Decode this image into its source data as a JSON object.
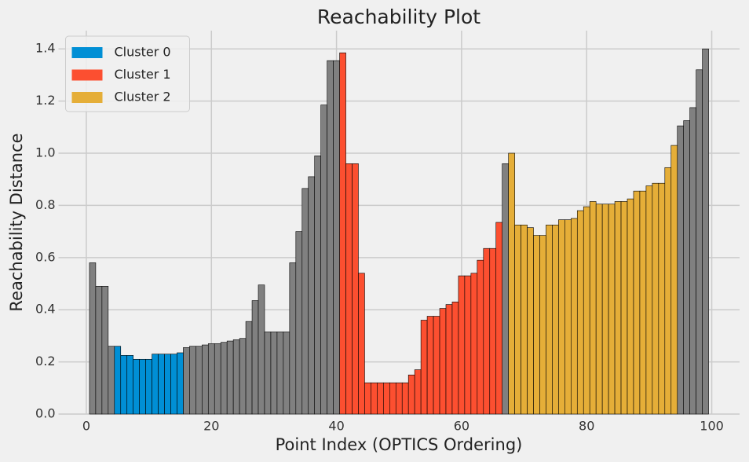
{
  "chart_data": {
    "type": "bar",
    "title": "Reachability Plot",
    "x_label": "Point Index (OPTICS Ordering)",
    "y_label": "Reachability Distance",
    "xlim": [
      -4.45,
      104.45
    ],
    "ylim": [
      0,
      1.47
    ],
    "xticks": [
      0,
      20,
      40,
      60,
      80,
      100
    ],
    "yticks": [
      {
        "value": 0,
        "label": "0.0"
      },
      {
        "value": 0.2,
        "label": "0.2"
      },
      {
        "value": 0.4,
        "label": "0.4"
      },
      {
        "value": 0.6,
        "label": "0.6"
      },
      {
        "value": 0.8,
        "label": "0.8"
      },
      {
        "value": 1,
        "label": "1.0"
      },
      {
        "value": 1.2,
        "label": "1.2"
      },
      {
        "value": 1.4,
        "label": "1.4"
      }
    ],
    "grid": true,
    "legend": "upper left",
    "series": [
      {
        "color": "#808080",
        "x": [
          1,
          2,
          3,
          4,
          16,
          17,
          18,
          19,
          20,
          21,
          22,
          23,
          24,
          25,
          26,
          27,
          28,
          29,
          30,
          31,
          32,
          33,
          34,
          35,
          36,
          37,
          38,
          39,
          40,
          67,
          95,
          96,
          97,
          98,
          99
        ],
        "values": [
          0.58,
          0.49,
          0.49,
          0.26,
          0.255,
          0.26,
          0.26,
          0.265,
          0.27,
          0.27,
          0.275,
          0.28,
          0.285,
          0.29,
          0.355,
          0.435,
          0.495,
          0.315,
          0.315,
          0.315,
          0.315,
          0.58,
          0.7,
          0.865,
          0.91,
          0.99,
          1.185,
          1.355,
          1.355,
          0.96,
          1.105,
          1.125,
          1.175,
          1.32,
          1.4
        ]
      },
      {
        "name": "Cluster 0",
        "color": "#008fd5",
        "x": [
          5,
          6,
          7,
          8,
          9,
          10,
          11,
          12,
          13,
          14,
          15
        ],
        "values": [
          0.26,
          0.225,
          0.225,
          0.21,
          0.21,
          0.21,
          0.23,
          0.23,
          0.23,
          0.23,
          0.235
        ]
      },
      {
        "name": "Cluster 1",
        "color": "#fc4f30",
        "x": [
          41,
          42,
          43,
          44,
          45,
          46,
          47,
          48,
          49,
          50,
          51,
          52,
          53,
          54,
          55,
          56,
          57,
          58,
          59,
          60,
          61,
          62,
          63,
          64,
          65,
          66
        ],
        "values": [
          1.385,
          0.96,
          0.96,
          0.54,
          0.12,
          0.12,
          0.12,
          0.12,
          0.12,
          0.12,
          0.12,
          0.15,
          0.17,
          0.36,
          0.375,
          0.375,
          0.405,
          0.42,
          0.43,
          0.53,
          0.53,
          0.54,
          0.59,
          0.635,
          0.635,
          0.735
        ]
      },
      {
        "name": "Cluster 2",
        "color": "#e5ae38",
        "x": [
          68,
          69,
          70,
          71,
          72,
          73,
          74,
          75,
          76,
          77,
          78,
          79,
          80,
          81,
          82,
          83,
          84,
          85,
          86,
          87,
          88,
          89,
          90,
          91,
          92,
          93,
          94
        ],
        "values": [
          1.0,
          0.725,
          0.725,
          0.715,
          0.685,
          0.685,
          0.725,
          0.725,
          0.745,
          0.745,
          0.75,
          0.78,
          0.795,
          0.815,
          0.805,
          0.805,
          0.805,
          0.815,
          0.815,
          0.825,
          0.855,
          0.855,
          0.875,
          0.885,
          0.885,
          0.945,
          1.03
        ]
      }
    ]
  }
}
